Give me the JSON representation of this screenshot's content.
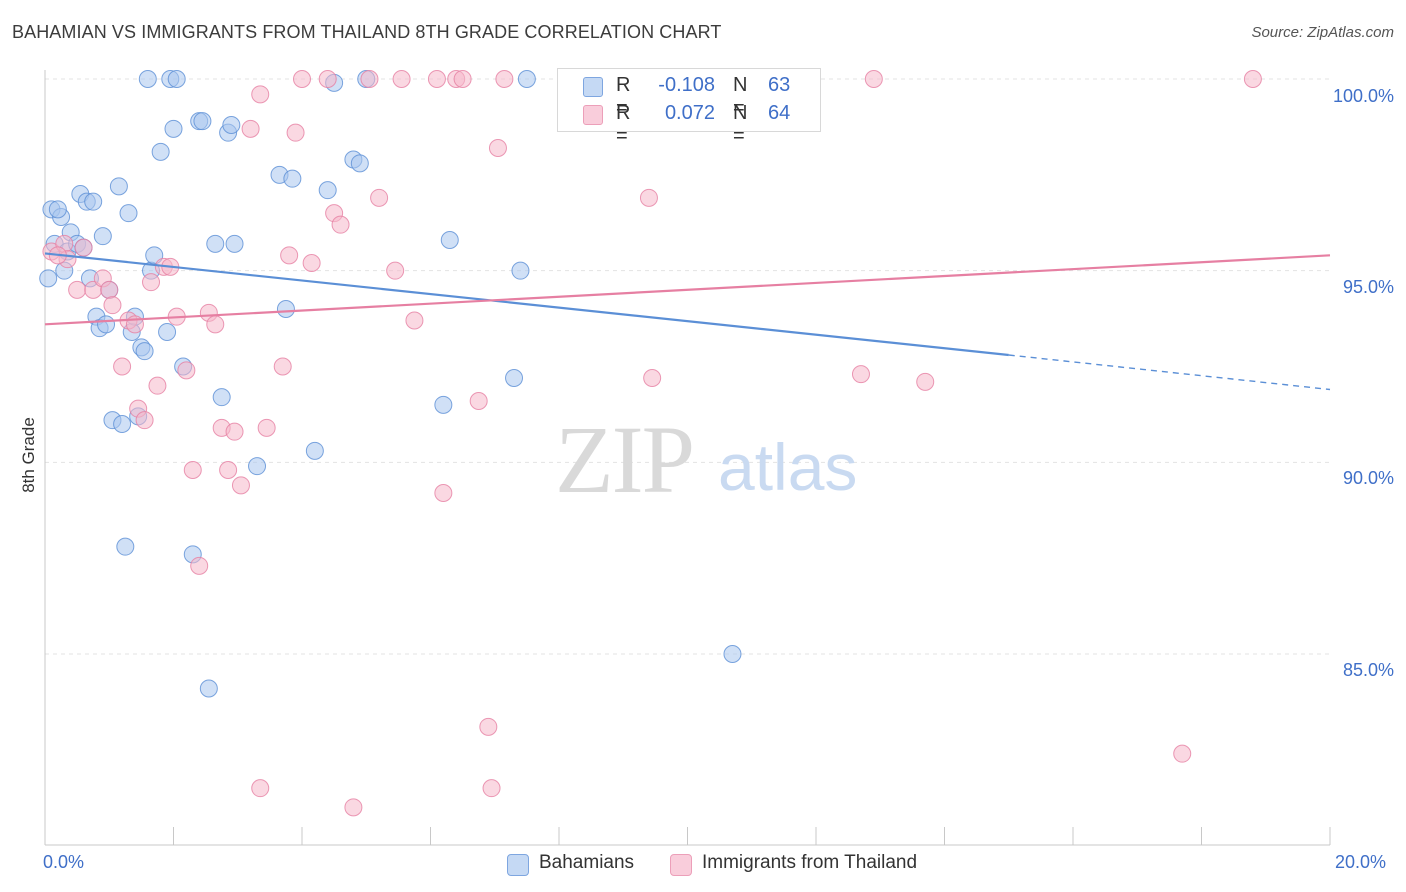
{
  "header": {
    "title": "BAHAMIAN VS IMMIGRANTS FROM THAILAND 8TH GRADE CORRELATION CHART",
    "source": "Source: ZipAtlas.com"
  },
  "watermark": {
    "zip": "ZIP",
    "atlas": "atlas"
  },
  "legend": {
    "rows": [
      {
        "r_label": "R =",
        "r_value": "-0.108",
        "n_label": "N =",
        "n_value": "63",
        "color": "#a9c6ef"
      },
      {
        "r_label": "R =",
        "r_value": "0.072",
        "n_label": "N =",
        "n_value": "64",
        "color": "#f5b8cb"
      }
    ]
  },
  "bottom_legend": [
    {
      "label": "Bahamians",
      "color": "#a9c6ef"
    },
    {
      "label": "Immigrants from Thailand",
      "color": "#f5b8cb"
    }
  ],
  "chart_data": {
    "type": "scatter",
    "title": "BAHAMIAN VS IMMIGRANTS FROM THAILAND 8TH GRADE CORRELATION CHART",
    "ylabel": "8th Grade",
    "xlabel": "",
    "xlim": [
      0,
      20
    ],
    "ylim": [
      80.7,
      100.5
    ],
    "x_tick_labels": [
      "0.0%",
      "20.0%"
    ],
    "y_tick_labels": [
      "100.0%",
      "95.0%",
      "90.0%",
      "85.0%"
    ],
    "y_ticks": [
      100,
      95,
      90,
      85
    ],
    "grid": true,
    "series": [
      {
        "name": "Bahamians",
        "color": "#5b8fd6",
        "fill": "#a9c6ef",
        "trend": {
          "x": [
            0,
            15
          ],
          "y": [
            95.45,
            92.8
          ],
          "dashed_to": [
            20,
            91.9
          ]
        },
        "points": [
          [
            0.05,
            94.8
          ],
          [
            0.1,
            96.6
          ],
          [
            0.15,
            95.7
          ],
          [
            0.25,
            96.4
          ],
          [
            0.3,
            95.0
          ],
          [
            0.35,
            95.5
          ],
          [
            0.4,
            96.0
          ],
          [
            0.5,
            95.7
          ],
          [
            0.55,
            97.0
          ],
          [
            0.65,
            96.8
          ],
          [
            0.7,
            94.8
          ],
          [
            0.75,
            96.8
          ],
          [
            0.8,
            93.8
          ],
          [
            0.85,
            93.5
          ],
          [
            0.9,
            95.9
          ],
          [
            0.95,
            93.6
          ],
          [
            1.0,
            94.5
          ],
          [
            1.05,
            91.1
          ],
          [
            1.15,
            97.2
          ],
          [
            1.2,
            91.0
          ],
          [
            1.25,
            87.8
          ],
          [
            1.3,
            96.5
          ],
          [
            1.35,
            93.4
          ],
          [
            1.4,
            93.8
          ],
          [
            1.45,
            91.2
          ],
          [
            1.5,
            93.0
          ],
          [
            1.55,
            92.9
          ],
          [
            1.6,
            100.0
          ],
          [
            1.65,
            95.0
          ],
          [
            1.7,
            95.4
          ],
          [
            1.8,
            98.1
          ],
          [
            1.9,
            93.4
          ],
          [
            1.95,
            100.0
          ],
          [
            2.0,
            98.7
          ],
          [
            2.05,
            100.0
          ],
          [
            2.15,
            92.5
          ],
          [
            2.3,
            87.6
          ],
          [
            2.4,
            98.9
          ],
          [
            2.45,
            98.9
          ],
          [
            2.55,
            84.1
          ],
          [
            2.65,
            95.7
          ],
          [
            2.75,
            91.7
          ],
          [
            2.85,
            98.6
          ],
          [
            2.9,
            98.8
          ],
          [
            2.95,
            95.7
          ],
          [
            3.3,
            89.9
          ],
          [
            3.65,
            97.5
          ],
          [
            3.75,
            94.0
          ],
          [
            3.85,
            97.4
          ],
          [
            4.2,
            90.3
          ],
          [
            4.4,
            97.1
          ],
          [
            4.5,
            99.9
          ],
          [
            4.8,
            97.9
          ],
          [
            4.9,
            97.8
          ],
          [
            5.0,
            100.0
          ],
          [
            6.2,
            91.5
          ],
          [
            6.3,
            95.8
          ],
          [
            7.3,
            92.2
          ],
          [
            7.4,
            95.0
          ],
          [
            7.5,
            100.0
          ],
          [
            10.7,
            85.0
          ],
          [
            0.2,
            96.6
          ],
          [
            0.6,
            95.6
          ]
        ]
      },
      {
        "name": "Immigrants from Thailand",
        "color": "#e67fa2",
        "fill": "#f5b8cb",
        "trend": {
          "x": [
            0,
            20
          ],
          "y": [
            93.6,
            95.4
          ]
        },
        "points": [
          [
            0.1,
            95.5
          ],
          [
            0.3,
            95.7
          ],
          [
            0.35,
            95.3
          ],
          [
            0.5,
            94.5
          ],
          [
            0.6,
            95.6
          ],
          [
            0.75,
            94.5
          ],
          [
            0.9,
            94.8
          ],
          [
            1.0,
            94.5
          ],
          [
            1.05,
            94.1
          ],
          [
            1.2,
            92.5
          ],
          [
            1.3,
            93.7
          ],
          [
            1.4,
            93.6
          ],
          [
            1.45,
            91.4
          ],
          [
            1.55,
            91.1
          ],
          [
            1.65,
            94.7
          ],
          [
            1.75,
            92.0
          ],
          [
            1.85,
            95.1
          ],
          [
            1.95,
            95.1
          ],
          [
            2.05,
            93.8
          ],
          [
            2.2,
            92.4
          ],
          [
            2.3,
            89.8
          ],
          [
            2.4,
            87.3
          ],
          [
            2.55,
            93.9
          ],
          [
            2.65,
            93.6
          ],
          [
            2.75,
            90.9
          ],
          [
            2.85,
            89.8
          ],
          [
            2.95,
            90.8
          ],
          [
            3.05,
            89.4
          ],
          [
            3.2,
            98.7
          ],
          [
            3.35,
            81.5
          ],
          [
            3.35,
            99.6
          ],
          [
            3.45,
            90.9
          ],
          [
            3.7,
            92.5
          ],
          [
            3.8,
            95.4
          ],
          [
            3.9,
            98.6
          ],
          [
            4.0,
            100.0
          ],
          [
            4.15,
            95.2
          ],
          [
            4.4,
            100.0
          ],
          [
            4.5,
            96.5
          ],
          [
            4.6,
            96.2
          ],
          [
            4.8,
            81.0
          ],
          [
            5.05,
            100.0
          ],
          [
            5.2,
            96.9
          ],
          [
            5.45,
            95.0
          ],
          [
            5.55,
            100.0
          ],
          [
            5.75,
            93.7
          ],
          [
            6.1,
            100.0
          ],
          [
            6.2,
            89.2
          ],
          [
            6.4,
            100.0
          ],
          [
            6.5,
            100.0
          ],
          [
            6.75,
            91.6
          ],
          [
            6.9,
            83.1
          ],
          [
            6.95,
            81.5
          ],
          [
            7.05,
            98.2
          ],
          [
            7.15,
            100.0
          ],
          [
            9.4,
            96.9
          ],
          [
            9.45,
            92.2
          ],
          [
            10.9,
            100.0
          ],
          [
            12.7,
            92.3
          ],
          [
            12.9,
            100.0
          ],
          [
            13.7,
            92.1
          ],
          [
            17.7,
            82.4
          ],
          [
            18.8,
            100.0
          ],
          [
            0.2,
            95.4
          ]
        ]
      }
    ]
  }
}
